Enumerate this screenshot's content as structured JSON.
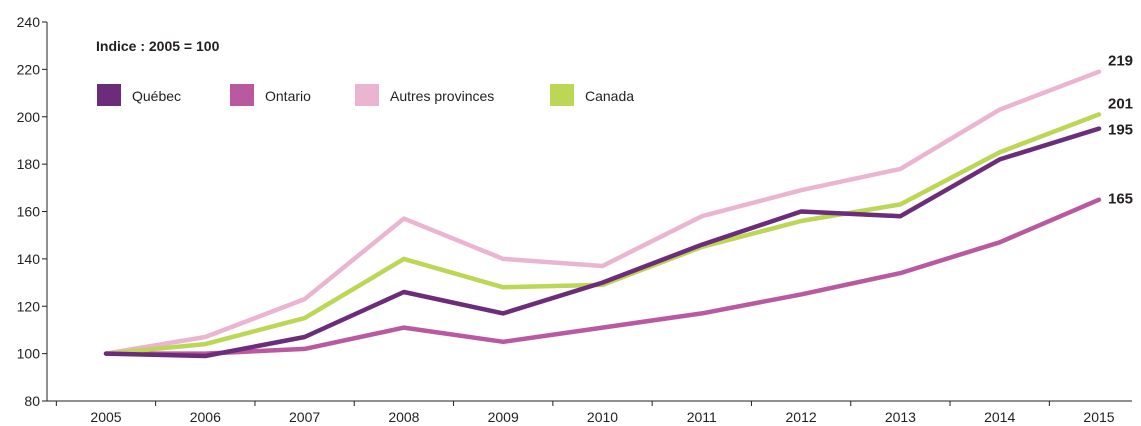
{
  "chart_data": {
    "type": "line",
    "title": "",
    "xlabel": "",
    "ylabel": "",
    "note": "Indice : 2005 = 100",
    "x": [
      "2005",
      "2006",
      "2007",
      "2008",
      "2009",
      "2010",
      "2011",
      "2012",
      "2013",
      "2014",
      "2015"
    ],
    "ylim": [
      80,
      240
    ],
    "yticks": [
      80,
      100,
      120,
      140,
      160,
      180,
      200,
      220,
      240
    ],
    "grid": false,
    "legend_position": "top-left",
    "series": [
      {
        "name": "Québec",
        "color": "#6b2c7a",
        "values": [
          100,
          99,
          107,
          126,
          117,
          130,
          146,
          160,
          158,
          182,
          195
        ],
        "end_label": "195"
      },
      {
        "name": "Ontario",
        "color": "#b95aa0",
        "values": [
          100,
          100,
          102,
          111,
          105,
          111,
          117,
          125,
          134,
          147,
          165
        ],
        "end_label": "165"
      },
      {
        "name": "Autres provinces",
        "color": "#ebb5d2",
        "values": [
          100,
          107,
          123,
          157,
          140,
          137,
          158,
          169,
          178,
          203,
          219
        ],
        "end_label": "219"
      },
      {
        "name": "Canada",
        "color": "#bcd655",
        "values": [
          100,
          104,
          115,
          140,
          128,
          129,
          145,
          156,
          163,
          185,
          201
        ],
        "end_label": "201"
      }
    ]
  }
}
